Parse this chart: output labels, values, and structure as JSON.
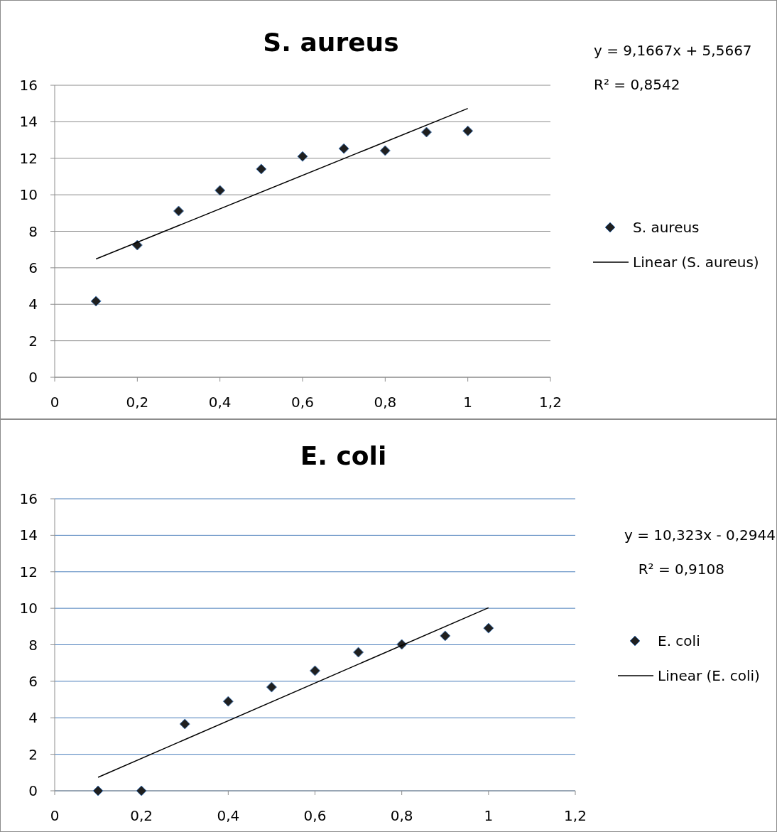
{
  "chart_data": [
    {
      "type": "scatter",
      "title": "S. aureus",
      "xlim": [
        0,
        1.2
      ],
      "xticks": [
        {
          "value": 0,
          "label": "0"
        },
        {
          "value": 0.2,
          "label": "0,2"
        },
        {
          "value": 0.4,
          "label": "0,4"
        },
        {
          "value": 0.6,
          "label": "0,6"
        },
        {
          "value": 0.8,
          "label": "0,8"
        },
        1,
        {
          "value": 1.2,
          "label": "1,2"
        }
      ],
      "ylim": [
        0,
        16
      ],
      "yticks": [
        0,
        2,
        4,
        6,
        8,
        10,
        12,
        14,
        16
      ],
      "grid": "y",
      "legend": "right",
      "annotations": [
        "y = 9,1667x + 5,5667",
        "R² = 0,8542"
      ],
      "series": [
        {
          "name": "S. aureus",
          "color": "#1f1f1f",
          "marker": "diamond",
          "x": [
            0.1,
            0.2,
            0.3,
            0.4,
            0.5,
            0.6,
            0.7,
            0.8,
            0.9,
            1.0
          ],
          "values": [
            4.17,
            7.24,
            9.11,
            10.24,
            11.41,
            12.1,
            12.53,
            12.42,
            13.43,
            13.5
          ]
        },
        {
          "name": "Linear (S. aureus)",
          "type": "line",
          "marker": "none",
          "color": "#000000",
          "x": [
            0.1,
            1.0
          ],
          "values": [
            6.48,
            14.73
          ]
        }
      ]
    },
    {
      "type": "scatter",
      "title": "E. coli",
      "xlim": [
        0,
        1.2
      ],
      "xticks": [
        {
          "value": 0,
          "label": "0"
        },
        {
          "value": 0.2,
          "label": "0,2"
        },
        {
          "value": 0.4,
          "label": "0,4"
        },
        {
          "value": 0.6,
          "label": "0,6"
        },
        {
          "value": 0.8,
          "label": "0,8"
        },
        1,
        {
          "value": 1.2,
          "label": "1,2"
        }
      ],
      "ylim": [
        0,
        16
      ],
      "yticks": [
        0,
        2,
        4,
        6,
        8,
        10,
        12,
        14,
        16
      ],
      "grid": "y",
      "legend": "right",
      "annotations": [
        "y = 10,323x - 0,2944",
        "R² = 0,9108"
      ],
      "series": [
        {
          "name": "E. coli",
          "color": "#1f1f1f",
          "marker": "diamond",
          "x": [
            0.1,
            0.2,
            0.3,
            0.4,
            0.5,
            0.6,
            0.7,
            0.8,
            0.9,
            1.0
          ],
          "values": [
            0,
            0,
            3.66,
            4.9,
            5.68,
            6.58,
            7.59,
            8.02,
            8.49,
            8.91
          ]
        },
        {
          "name": "Linear (E. coli)",
          "type": "line",
          "marker": "none",
          "color": "#000000",
          "x": [
            0.1,
            1.0
          ],
          "values": [
            0.74,
            10.03
          ]
        }
      ]
    }
  ]
}
